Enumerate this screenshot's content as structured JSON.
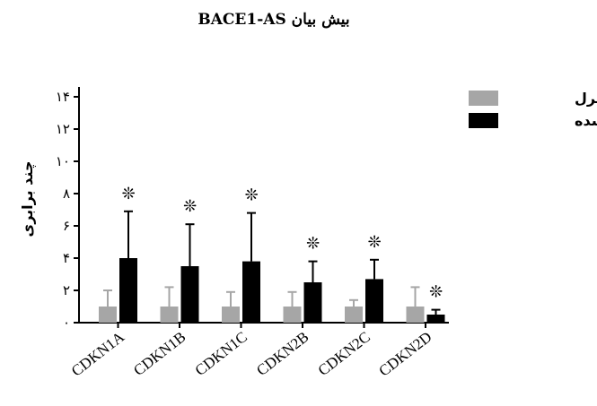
{
  "chart_data": {
    "type": "bar",
    "title": "بیش بیان BACE1-AS",
    "ylabel": "چند برابری",
    "xlabel": "",
    "ylim": [
      0,
      14
    ],
    "yticks": [
      "۰",
      "۲",
      "۴",
      "۶",
      "۸",
      "۱۰",
      "۱۲",
      "۱۴"
    ],
    "categories": [
      "CDKN1A",
      "CDKN1B",
      "CDKN1C",
      "CDKN2B",
      "CDKN2C",
      "CDKN2D"
    ],
    "series": [
      {
        "name": "کنترل",
        "color": "#a6a6a6",
        "values": [
          1,
          1,
          1,
          1,
          1,
          1
        ],
        "errors": [
          1.0,
          1.2,
          0.9,
          0.9,
          0.4,
          1.2
        ]
      },
      {
        "name": "عفونی شده",
        "color": "#000000",
        "values": [
          4.0,
          3.5,
          3.8,
          2.5,
          2.7,
          0.5
        ],
        "errors": [
          2.9,
          2.6,
          3.0,
          1.3,
          1.2,
          0.3
        ]
      }
    ],
    "annotations": [
      "❊",
      "❊",
      "❊",
      "❊",
      "❊",
      "❊"
    ],
    "legend_position": "top-right",
    "grid": false
  }
}
